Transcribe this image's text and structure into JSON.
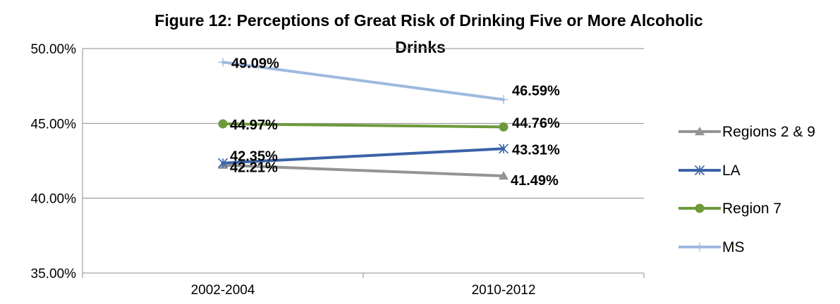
{
  "chart_data": {
    "type": "line",
    "title_line1": "Figure 12: Perceptions of Great Risk of Drinking Five or More Alcoholic",
    "title_line2": "Drinks",
    "categories": [
      "2002-2004",
      "2010-2012"
    ],
    "ylim": [
      35,
      50
    ],
    "yticks": [
      35,
      40,
      45,
      50
    ],
    "ytick_labels": [
      "35.00%",
      "40.00%",
      "45.00%",
      "50.00%"
    ],
    "grid": true,
    "legend_position": "right",
    "series": [
      {
        "name": "Regions 2 & 9",
        "values": [
          42.21,
          41.49
        ],
        "labels": [
          "42.21%",
          "41.49%"
        ],
        "color": "#949494",
        "marker": "triangle"
      },
      {
        "name": "LA",
        "values": [
          42.35,
          43.31
        ],
        "labels": [
          "42.35%",
          "43.31%"
        ],
        "color": "#3a63a8",
        "marker": "asterisk"
      },
      {
        "name": "Region 7",
        "values": [
          44.97,
          44.76
        ],
        "labels": [
          "44.97%",
          "44.76%"
        ],
        "color": "#6e9a3c",
        "marker": "circle"
      },
      {
        "name": "MS",
        "values": [
          49.09,
          46.59
        ],
        "labels": [
          "49.09%",
          "46.59%"
        ],
        "color": "#9db9de",
        "marker": "plus"
      }
    ]
  }
}
